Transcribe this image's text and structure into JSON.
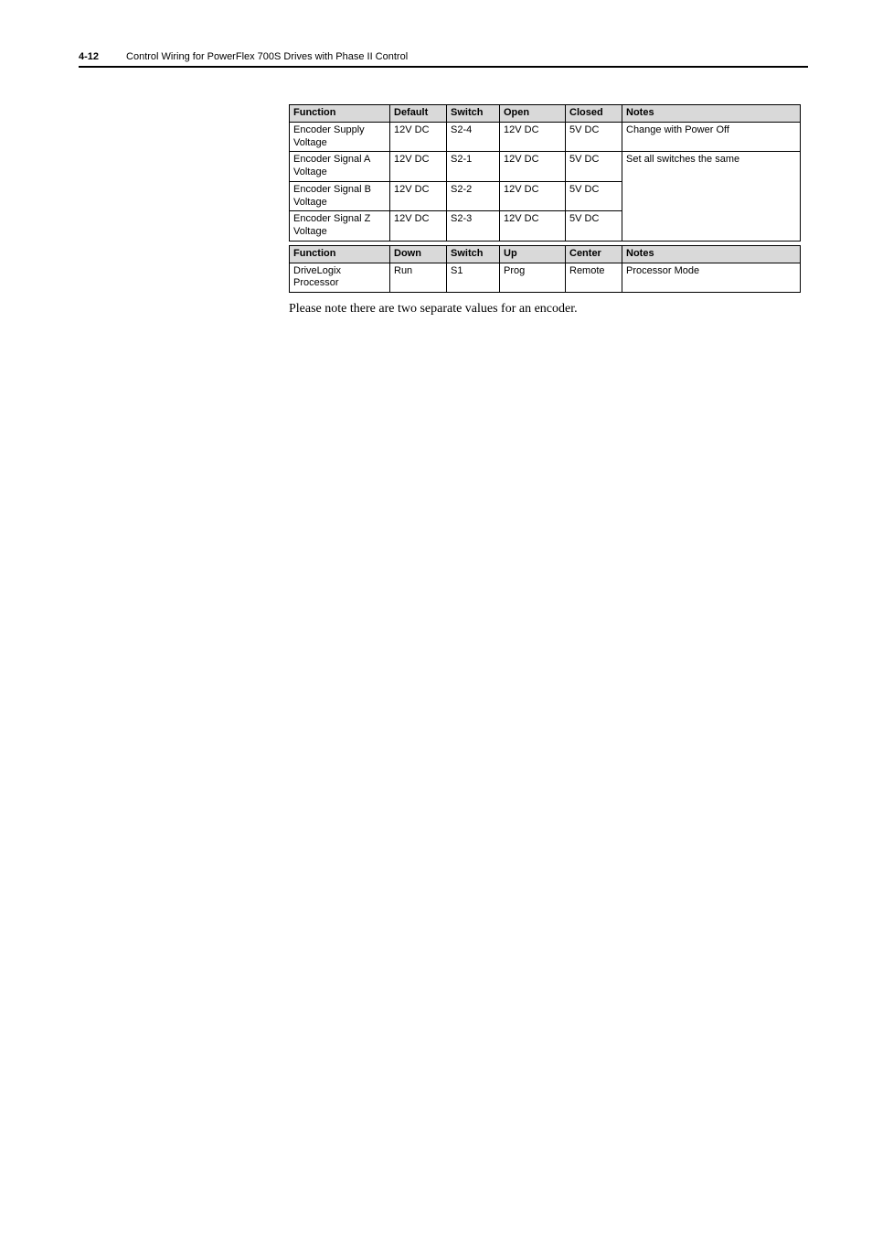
{
  "header": {
    "page_number": "4-12",
    "title": "Control Wiring for PowerFlex 700S Drives with Phase II Control"
  },
  "table1": {
    "headers": {
      "function": "Function",
      "default": "Default",
      "switch": "Switch",
      "open": "Open",
      "closed": "Closed",
      "notes": "Notes"
    },
    "rows": [
      {
        "function": "Encoder Supply Voltage",
        "default": "12V DC",
        "switch": "S2-4",
        "open": "12V DC",
        "closed": "5V DC",
        "notes": "Change with Power Off"
      },
      {
        "function": "Encoder Signal A Voltage",
        "default": "12V DC",
        "switch": "S2-1",
        "open": "12V DC",
        "closed": "5V DC",
        "notes": "Set all switches the same"
      },
      {
        "function": "Encoder Signal B Voltage",
        "default": "12V DC",
        "switch": "S2-2",
        "open": "12V DC",
        "closed": "5V DC",
        "notes": ""
      },
      {
        "function": "Encoder Signal Z Voltage",
        "default": "12V DC",
        "switch": "S2-3",
        "open": "12V DC",
        "closed": "5V DC",
        "notes": ""
      }
    ]
  },
  "table2": {
    "headers": {
      "function": "Function",
      "down": "Down",
      "switch": "Switch",
      "up": "Up",
      "center": "Center",
      "notes": "Notes"
    },
    "rows": [
      {
        "function": "DriveLogix Processor",
        "down": "Run",
        "switch": "S1",
        "up": "Prog",
        "center": "Remote",
        "notes": "Processor Mode"
      }
    ]
  },
  "caption": "Please note there are two separate values for an encoder."
}
